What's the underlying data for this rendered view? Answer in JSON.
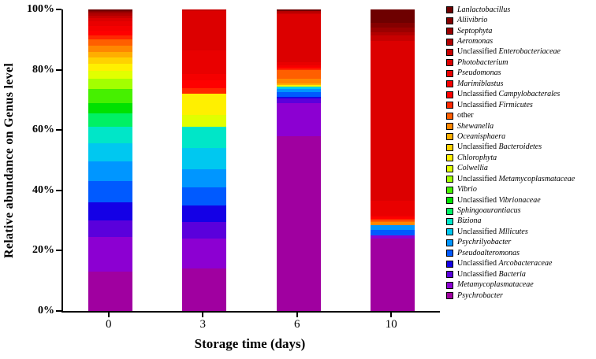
{
  "chart_data": {
    "type": "bar",
    "stacked": true,
    "unit": "%",
    "title": "",
    "xlabel": "Storage time (days)",
    "ylabel": "Relative abundance on Genus level",
    "categories": [
      "0",
      "3",
      "6",
      "10"
    ],
    "ylim": [
      0,
      100
    ],
    "y_ticks": [
      "0%",
      "20%",
      "40%",
      "60%",
      "80%",
      "100%"
    ],
    "grid": false,
    "legend_position": "right",
    "series_note": "series listed top-of-stack first (matches legend top-to-bottom); values are percent per storage day [0,3,6,10]",
    "series": [
      {
        "prefix": "",
        "name": "Lanlactobacillus",
        "color": "#6E0000",
        "values": [
          0.4,
          0,
          0.5,
          4.5
        ]
      },
      {
        "prefix": "",
        "name": "Aliivibrio",
        "color": "#850000",
        "values": [
          0.4,
          0,
          0,
          1.5
        ]
      },
      {
        "prefix": "",
        "name": "Septophyta",
        "color": "#9B0000",
        "values": [
          0.4,
          0,
          0,
          1.5
        ]
      },
      {
        "prefix": "",
        "name": "Aeromonas",
        "color": "#B20000",
        "values": [
          0.8,
          0,
          0.5,
          1
        ]
      },
      {
        "prefix": "Unclassified",
        "name": "Enterobacteriaceae",
        "color": "#C80000",
        "values": [
          0.8,
          0.5,
          0.5,
          2
        ]
      },
      {
        "prefix": "",
        "name": "Photobacterium",
        "color": "#DC0000",
        "values": [
          1.2,
          13,
          16,
          53
        ]
      },
      {
        "prefix": "",
        "name": "Pseudomonas",
        "color": "#E90000",
        "values": [
          1.5,
          8,
          1,
          5
        ]
      },
      {
        "prefix": "",
        "name": "Marimiblastus",
        "color": "#F50000",
        "values": [
          1.5,
          2,
          0.5,
          0.5
        ]
      },
      {
        "prefix": "Unclassified",
        "name": "Campylobacterales",
        "color": "#FF0000",
        "values": [
          1.5,
          2.5,
          0.5,
          0.5
        ]
      },
      {
        "prefix": "Unclassified",
        "name": "Firmicutes",
        "color": "#FF2800",
        "values": [
          1.5,
          2,
          0.5,
          0.5
        ]
      },
      {
        "prefix": "other",
        "name": "",
        "color": "#FF5F00",
        "values": [
          2,
          0,
          3,
          0.5
        ]
      },
      {
        "prefix": "",
        "name": "Shewanella",
        "color": "#FF8700",
        "values": [
          2,
          0,
          1.5,
          1
        ]
      },
      {
        "prefix": "",
        "name": "Oceanisphaera",
        "color": "#FFAE00",
        "values": [
          2,
          0,
          0.5,
          0
        ]
      },
      {
        "prefix": "Unclassified",
        "name": "Bacteroidetes",
        "color": "#FFD200",
        "values": [
          2,
          0,
          0,
          0
        ]
      },
      {
        "prefix": "",
        "name": "Chlorophyta",
        "color": "#FFF000",
        "values": [
          2.5,
          7,
          0.5,
          0
        ]
      },
      {
        "prefix": "",
        "name": "Colwellia",
        "color": "#E1FF00",
        "values": [
          2.5,
          4,
          0,
          0
        ]
      },
      {
        "prefix": "Unclassified",
        "name": "Metamycoplasmataceae",
        "color": "#A3FF00",
        "values": [
          3.5,
          0,
          0,
          0
        ]
      },
      {
        "prefix": "",
        "name": "Vibrio",
        "color": "#46F000",
        "values": [
          4.5,
          0,
          0,
          0
        ]
      },
      {
        "prefix": "Unclassified",
        "name": "Vibrionaceae",
        "color": "#00E100",
        "values": [
          3.5,
          0,
          0,
          0
        ]
      },
      {
        "prefix": "",
        "name": "Sphingoaurantiacus",
        "color": "#00F064",
        "values": [
          4.5,
          0,
          0,
          0
        ]
      },
      {
        "prefix": "",
        "name": "Biziona",
        "color": "#00E6C8",
        "values": [
          5.5,
          7,
          0.5,
          0
        ]
      },
      {
        "prefix": "Unclassified",
        "name": "Mllicutes",
        "color": "#00C8F0",
        "values": [
          6,
          7,
          0.5,
          0
        ]
      },
      {
        "prefix": "",
        "name": "Psychrilyobacter",
        "color": "#0096FF",
        "values": [
          6.5,
          6,
          1,
          1.5
        ]
      },
      {
        "prefix": "",
        "name": "Pseudoalteromonas",
        "color": "#005AFF",
        "values": [
          7,
          6,
          1.5,
          2
        ]
      },
      {
        "prefix": "Unclassified",
        "name": "Arcobacteraceae",
        "color": "#1400E6",
        "values": [
          6,
          5.5,
          0.5,
          0
        ]
      },
      {
        "prefix": "Unclassified",
        "name": "Bacteria",
        "color": "#5A00DC",
        "values": [
          5.5,
          5.5,
          1.5,
          0
        ]
      },
      {
        "prefix": "",
        "name": "Metamycoplasmataceae",
        "color": "#8C00D2",
        "values": [
          11.5,
          10,
          11,
          1
        ]
      },
      {
        "prefix": "",
        "name": "Psychrobacter",
        "color": "#A000A0",
        "values": [
          13,
          14,
          58,
          24
        ]
      }
    ]
  }
}
